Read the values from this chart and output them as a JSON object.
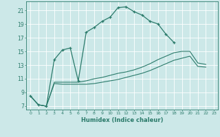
{
  "xlabel": "Humidex (Indice chaleur)",
  "background_color": "#cce8e8",
  "grid_color": "#b8d8d8",
  "line_color": "#2a7a6a",
  "xlim_min": -0.5,
  "xlim_max": 23.5,
  "ylim_min": 6.5,
  "ylim_max": 22.3,
  "yticks": [
    7,
    9,
    11,
    13,
    15,
    17,
    19,
    21
  ],
  "xticks": [
    0,
    1,
    2,
    3,
    4,
    5,
    6,
    7,
    8,
    9,
    10,
    11,
    12,
    13,
    14,
    15,
    16,
    17,
    18,
    19,
    20,
    21,
    22,
    23
  ],
  "s1_x": [
    0,
    1,
    2,
    3,
    4,
    5,
    6,
    7,
    8,
    9,
    10,
    11,
    12,
    13,
    14,
    15,
    16,
    17,
    18
  ],
  "s1_y": [
    8.5,
    7.2,
    7.0,
    13.8,
    15.2,
    15.5,
    10.7,
    17.8,
    18.5,
    19.4,
    20.0,
    21.4,
    21.5,
    20.8,
    20.3,
    19.4,
    19.0,
    17.5,
    16.3
  ],
  "s2_x": [
    0,
    1,
    2,
    3,
    4,
    5,
    6,
    7,
    8,
    9,
    10,
    11,
    12,
    13,
    14,
    15,
    16,
    17,
    18,
    19,
    20,
    21,
    22
  ],
  "s2_y": [
    8.5,
    7.2,
    7.0,
    10.5,
    10.5,
    10.5,
    10.5,
    10.7,
    11.0,
    11.2,
    11.5,
    11.8,
    12.0,
    12.3,
    12.7,
    13.2,
    13.8,
    14.3,
    14.8,
    15.0,
    15.0,
    13.3,
    13.1
  ],
  "s3_x": [
    0,
    1,
    2,
    3,
    4,
    5,
    6,
    7,
    8,
    9,
    10,
    11,
    12,
    13,
    14,
    15,
    16,
    17,
    18,
    19,
    20,
    21,
    22
  ],
  "s3_y": [
    8.5,
    7.2,
    7.0,
    10.3,
    10.2,
    10.2,
    10.2,
    10.2,
    10.3,
    10.5,
    10.7,
    10.9,
    11.2,
    11.5,
    11.8,
    12.2,
    12.7,
    13.2,
    13.7,
    14.0,
    14.3,
    12.8,
    12.7
  ]
}
